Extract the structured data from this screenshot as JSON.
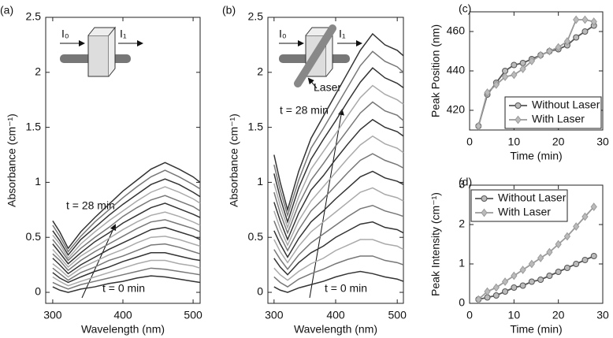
{
  "chart_data": [
    {
      "type": "line",
      "title": "(a)",
      "xlabel": "Wavelength (nm)",
      "ylabel": "Absorbance (cm⁻¹)",
      "x": [
        300,
        310,
        322,
        340,
        360,
        380,
        400,
        420,
        440,
        460,
        480,
        500,
        510
      ],
      "xlim": [
        290,
        510
      ],
      "ylim": [
        -0.1,
        2.5
      ],
      "xticks": [
        300,
        400,
        500
      ],
      "yticks": [
        0,
        0.5,
        1,
        1.5,
        2,
        2.5
      ],
      "annotations": [
        "t = 28 min",
        "t = 0 min"
      ],
      "inset_labels": [
        "I₀",
        "I₁"
      ],
      "series": [
        {
          "color": "#333333",
          "values": [
            0.05,
            0.02,
            0.0,
            0.03,
            0.05,
            0.08,
            0.1,
            0.13,
            0.15,
            0.14,
            0.12,
            0.1,
            0.09
          ]
        },
        {
          "color": "#777777",
          "values": [
            0.09,
            0.06,
            0.03,
            0.07,
            0.1,
            0.13,
            0.16,
            0.19,
            0.22,
            0.21,
            0.19,
            0.17,
            0.16
          ]
        },
        {
          "color": "#aaaaaa",
          "values": [
            0.14,
            0.1,
            0.06,
            0.1,
            0.14,
            0.18,
            0.22,
            0.26,
            0.29,
            0.29,
            0.26,
            0.24,
            0.22
          ]
        },
        {
          "color": "#333333",
          "values": [
            0.18,
            0.13,
            0.09,
            0.14,
            0.19,
            0.23,
            0.28,
            0.32,
            0.36,
            0.36,
            0.33,
            0.3,
            0.29
          ]
        },
        {
          "color": "#777777",
          "values": [
            0.22,
            0.17,
            0.11,
            0.18,
            0.23,
            0.29,
            0.33,
            0.38,
            0.43,
            0.44,
            0.41,
            0.37,
            0.35
          ]
        },
        {
          "color": "#aaaaaa",
          "values": [
            0.26,
            0.21,
            0.14,
            0.22,
            0.28,
            0.34,
            0.39,
            0.45,
            0.5,
            0.51,
            0.48,
            0.44,
            0.42
          ]
        },
        {
          "color": "#333333",
          "values": [
            0.31,
            0.25,
            0.17,
            0.25,
            0.32,
            0.39,
            0.45,
            0.51,
            0.57,
            0.59,
            0.55,
            0.51,
            0.48
          ]
        },
        {
          "color": "#777777",
          "values": [
            0.35,
            0.29,
            0.2,
            0.29,
            0.37,
            0.44,
            0.51,
            0.58,
            0.64,
            0.66,
            0.62,
            0.58,
            0.55
          ]
        },
        {
          "color": "#aaaaaa",
          "values": [
            0.39,
            0.32,
            0.23,
            0.33,
            0.41,
            0.49,
            0.57,
            0.64,
            0.7,
            0.73,
            0.69,
            0.64,
            0.61
          ]
        },
        {
          "color": "#333333",
          "values": [
            0.44,
            0.36,
            0.26,
            0.36,
            0.46,
            0.54,
            0.63,
            0.7,
            0.77,
            0.81,
            0.76,
            0.71,
            0.68
          ]
        },
        {
          "color": "#777777",
          "values": [
            0.48,
            0.4,
            0.29,
            0.4,
            0.5,
            0.59,
            0.69,
            0.77,
            0.84,
            0.88,
            0.83,
            0.78,
            0.74
          ]
        },
        {
          "color": "#aaaaaa",
          "values": [
            0.52,
            0.44,
            0.31,
            0.44,
            0.55,
            0.65,
            0.74,
            0.83,
            0.91,
            0.96,
            0.91,
            0.85,
            0.81
          ]
        },
        {
          "color": "#333333",
          "values": [
            0.56,
            0.47,
            0.34,
            0.48,
            0.59,
            0.7,
            0.8,
            0.89,
            0.98,
            1.03,
            0.98,
            0.91,
            0.87
          ]
        },
        {
          "color": "#777777",
          "values": [
            0.61,
            0.51,
            0.37,
            0.51,
            0.64,
            0.75,
            0.86,
            0.96,
            1.05,
            1.11,
            1.05,
            0.98,
            0.94
          ]
        },
        {
          "color": "#333333",
          "values": [
            0.65,
            0.55,
            0.4,
            0.55,
            0.68,
            0.8,
            0.92,
            1.02,
            1.12,
            1.18,
            1.12,
            1.05,
            1.0
          ]
        }
      ]
    },
    {
      "type": "line",
      "title": "(b)",
      "xlabel": "Wavelength (nm)",
      "ylabel": "Absorbance (cm⁻¹)",
      "x": [
        300,
        310,
        322,
        340,
        360,
        380,
        400,
        420,
        440,
        460,
        480,
        500,
        510
      ],
      "xlim": [
        290,
        510
      ],
      "ylim": [
        -0.1,
        2.5
      ],
      "xticks": [
        300,
        400,
        500
      ],
      "yticks": [
        0,
        0.5,
        1,
        1.5,
        2,
        2.5
      ],
      "annotations": [
        "t = 28 min",
        "t = 0 min"
      ],
      "inset_labels": [
        "I₀",
        "I₁",
        "Laser"
      ],
      "series": [
        {
          "color": "#333333",
          "values": [
            0.05,
            0.02,
            0.0,
            0.04,
            0.07,
            0.1,
            0.14,
            0.17,
            0.19,
            0.17,
            0.14,
            0.12,
            0.1
          ]
        },
        {
          "color": "#777777",
          "values": [
            0.14,
            0.09,
            0.05,
            0.12,
            0.17,
            0.21,
            0.26,
            0.3,
            0.33,
            0.33,
            0.29,
            0.27,
            0.25
          ]
        },
        {
          "color": "#aaaaaa",
          "values": [
            0.22,
            0.16,
            0.11,
            0.19,
            0.26,
            0.31,
            0.38,
            0.43,
            0.48,
            0.48,
            0.44,
            0.42,
            0.39
          ]
        },
        {
          "color": "#333333",
          "values": [
            0.31,
            0.23,
            0.16,
            0.27,
            0.36,
            0.42,
            0.5,
            0.56,
            0.62,
            0.64,
            0.59,
            0.57,
            0.54
          ]
        },
        {
          "color": "#777777",
          "values": [
            0.39,
            0.3,
            0.21,
            0.34,
            0.45,
            0.53,
            0.61,
            0.69,
            0.76,
            0.79,
            0.74,
            0.71,
            0.69
          ]
        },
        {
          "color": "#aaaaaa",
          "values": [
            0.48,
            0.37,
            0.27,
            0.42,
            0.55,
            0.64,
            0.73,
            0.82,
            0.91,
            0.95,
            0.89,
            0.86,
            0.83
          ]
        },
        {
          "color": "#333333",
          "values": [
            0.56,
            0.44,
            0.32,
            0.49,
            0.64,
            0.74,
            0.85,
            0.95,
            1.05,
            1.1,
            1.04,
            1.01,
            0.98
          ]
        },
        {
          "color": "#777777",
          "values": [
            0.65,
            0.51,
            0.38,
            0.57,
            0.74,
            0.85,
            0.97,
            1.09,
            1.2,
            1.26,
            1.2,
            1.16,
            1.13
          ]
        },
        {
          "color": "#aaaaaa",
          "values": [
            0.74,
            0.58,
            0.43,
            0.65,
            0.83,
            0.96,
            1.09,
            1.22,
            1.34,
            1.42,
            1.35,
            1.31,
            1.27
          ]
        },
        {
          "color": "#333333",
          "values": [
            0.82,
            0.65,
            0.48,
            0.72,
            0.93,
            1.06,
            1.21,
            1.35,
            1.48,
            1.57,
            1.5,
            1.46,
            1.42
          ]
        },
        {
          "color": "#777777",
          "values": [
            0.91,
            0.72,
            0.54,
            0.8,
            1.02,
            1.17,
            1.33,
            1.48,
            1.63,
            1.73,
            1.65,
            1.61,
            1.56
          ]
        },
        {
          "color": "#aaaaaa",
          "values": [
            0.99,
            0.79,
            0.59,
            0.87,
            1.12,
            1.28,
            1.44,
            1.61,
            1.77,
            1.88,
            1.8,
            1.75,
            1.71
          ]
        },
        {
          "color": "#333333",
          "values": [
            1.08,
            0.86,
            0.64,
            0.95,
            1.21,
            1.39,
            1.56,
            1.74,
            1.91,
            2.04,
            1.95,
            1.9,
            1.86
          ]
        },
        {
          "color": "#777777",
          "values": [
            1.16,
            0.93,
            0.7,
            1.02,
            1.31,
            1.49,
            1.68,
            1.87,
            2.06,
            2.19,
            2.1,
            2.05,
            2.0
          ]
        },
        {
          "color": "#333333",
          "values": [
            1.25,
            1.0,
            0.75,
            1.1,
            1.4,
            1.6,
            1.8,
            2.0,
            2.2,
            2.35,
            2.25,
            2.2,
            2.15
          ]
        }
      ]
    },
    {
      "type": "line",
      "title": "(c)",
      "xlabel": "Time (min)",
      "ylabel": "Peak Position (nm)",
      "x": [
        2,
        4,
        6,
        8,
        10,
        12,
        14,
        16,
        18,
        20,
        22,
        24,
        26,
        28
      ],
      "xlim": [
        0,
        30
      ],
      "ylim": [
        410,
        470
      ],
      "xticks": [
        0,
        10,
        20,
        30
      ],
      "yticks": [
        420,
        440,
        460
      ],
      "legend": "lower right",
      "series": [
        {
          "name": "Without Laser",
          "color": "#555555",
          "marker": "circle",
          "values": [
            412,
            428,
            434,
            440,
            443,
            444,
            446,
            448,
            450,
            451,
            453,
            457,
            460,
            463
          ]
        },
        {
          "name": "With Laser",
          "color": "#999999",
          "marker": "diamond",
          "values": [
            412,
            429,
            433,
            437,
            438,
            441,
            445,
            448,
            450,
            452,
            455,
            466,
            466,
            465
          ]
        }
      ]
    },
    {
      "type": "line",
      "title": "(d)",
      "xlabel": "Time (min)",
      "ylabel": "Peak Intensity (cm⁻¹)",
      "x": [
        2,
        4,
        6,
        8,
        10,
        12,
        14,
        16,
        18,
        20,
        22,
        24,
        26,
        28
      ],
      "xlim": [
        0,
        30
      ],
      "ylim": [
        0,
        3
      ],
      "xticks": [
        0,
        10,
        20,
        30
      ],
      "yticks": [
        0,
        1,
        2,
        3
      ],
      "legend": "upper left",
      "series": [
        {
          "name": "Without Laser",
          "color": "#555555",
          "marker": "circle",
          "values": [
            0.1,
            0.15,
            0.2,
            0.3,
            0.4,
            0.45,
            0.55,
            0.6,
            0.7,
            0.8,
            0.9,
            1.0,
            1.1,
            1.2
          ]
        },
        {
          "name": "With Laser",
          "color": "#999999",
          "marker": "diamond",
          "values": [
            0.1,
            0.3,
            0.4,
            0.55,
            0.7,
            0.85,
            1.0,
            1.15,
            1.3,
            1.5,
            1.7,
            1.95,
            2.2,
            2.45
          ]
        }
      ]
    }
  ]
}
